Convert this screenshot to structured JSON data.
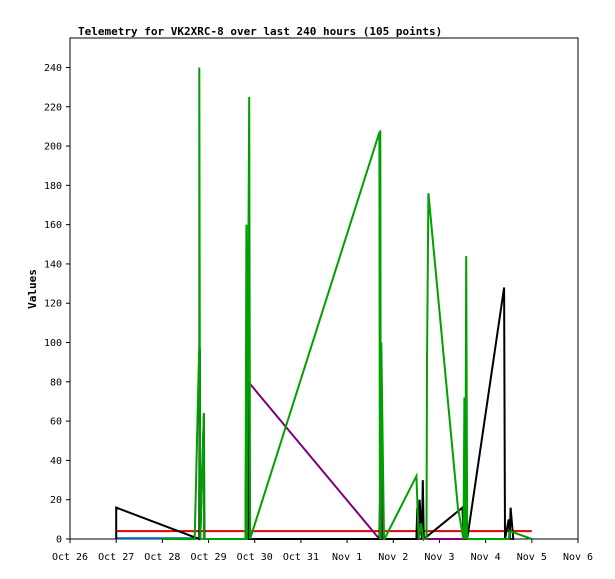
{
  "chart_data": {
    "type": "line",
    "title": "Telemetry for VK2XRC-8 over last 240 hours (105 points)",
    "xlabel": "",
    "ylabel": "Values",
    "x_tick_labels": [
      "Oct 26",
      "Oct 27",
      "Oct 28",
      "Oct 29",
      "Oct 30",
      "Oct 31",
      "Nov 1",
      "Nov 2",
      "Nov 3",
      "Nov 4",
      "Nov 5",
      "Nov 6"
    ],
    "xlim_days": [
      0,
      11
    ],
    "ylim": [
      0,
      255
    ],
    "y_ticks": [
      0,
      20,
      40,
      60,
      80,
      100,
      120,
      140,
      160,
      180,
      200,
      220,
      240
    ],
    "grid": false,
    "legend": "none",
    "colors": {
      "green": "#00a000",
      "black": "#000000",
      "purple": "#800080",
      "red": "#e00000",
      "blue": "#0060c0"
    },
    "series": [
      {
        "color": "green",
        "x": [
          2.0,
          2.0,
          2.7,
          2.8,
          2.8,
          2.81,
          2.82,
          2.9,
          2.9,
          2.92,
          3.8,
          3.82,
          3.83,
          3.88,
          3.9,
          6.7,
          6.71,
          6.72,
          6.73,
          6.74,
          6.8,
          6.81,
          7.5,
          7.55,
          7.6,
          7.65,
          7.72,
          7.73,
          7.76,
          8.4,
          8.52,
          8.54,
          8.56,
          8.58,
          8.6,
          8.62,
          9.5,
          9.52,
          10.0
        ],
        "y": [
          0,
          0,
          0,
          100,
          240,
          90,
          0,
          64,
          0,
          0,
          0,
          160,
          0,
          225,
          0,
          207,
          0,
          208,
          0,
          100,
          0,
          0,
          32,
          0,
          8,
          0,
          0,
          90,
          176,
          16,
          0,
          72,
          0,
          144,
          0,
          0,
          0,
          4,
          0
        ]
      },
      {
        "color": "black",
        "x": [
          1.0,
          1.0,
          2.8,
          2.81,
          2.82,
          2.9,
          2.91,
          3.8,
          3.81,
          3.82,
          3.85,
          3.87,
          6.7,
          6.72,
          6.74,
          7.5,
          7.52,
          7.55,
          7.57,
          7.62,
          7.64,
          7.66,
          8.5,
          8.52,
          8.55,
          8.57,
          8.6,
          9.4,
          9.42,
          9.5,
          9.52,
          9.54,
          9.6,
          9.62
        ],
        "y": [
          0,
          16,
          0,
          97,
          0,
          64,
          0,
          0,
          48,
          0,
          80,
          0,
          0,
          32,
          0,
          0,
          16,
          0,
          20,
          0,
          30,
          0,
          16,
          0,
          12,
          0,
          0,
          128,
          0,
          10,
          0,
          16,
          0,
          0
        ]
      },
      {
        "color": "purple",
        "x": [
          3.82,
          3.83,
          3.84,
          3.86,
          6.7,
          6.72,
          6.74,
          6.76,
          9.6
        ],
        "y": [
          0,
          112,
          0,
          80,
          0,
          0,
          80,
          0,
          0
        ]
      },
      {
        "color": "red",
        "x": [
          1.0,
          10.0
        ],
        "y": [
          4,
          4
        ]
      },
      {
        "color": "blue",
        "x": [
          1.0,
          2.8
        ],
        "y": [
          0.4,
          0.4
        ]
      }
    ]
  }
}
